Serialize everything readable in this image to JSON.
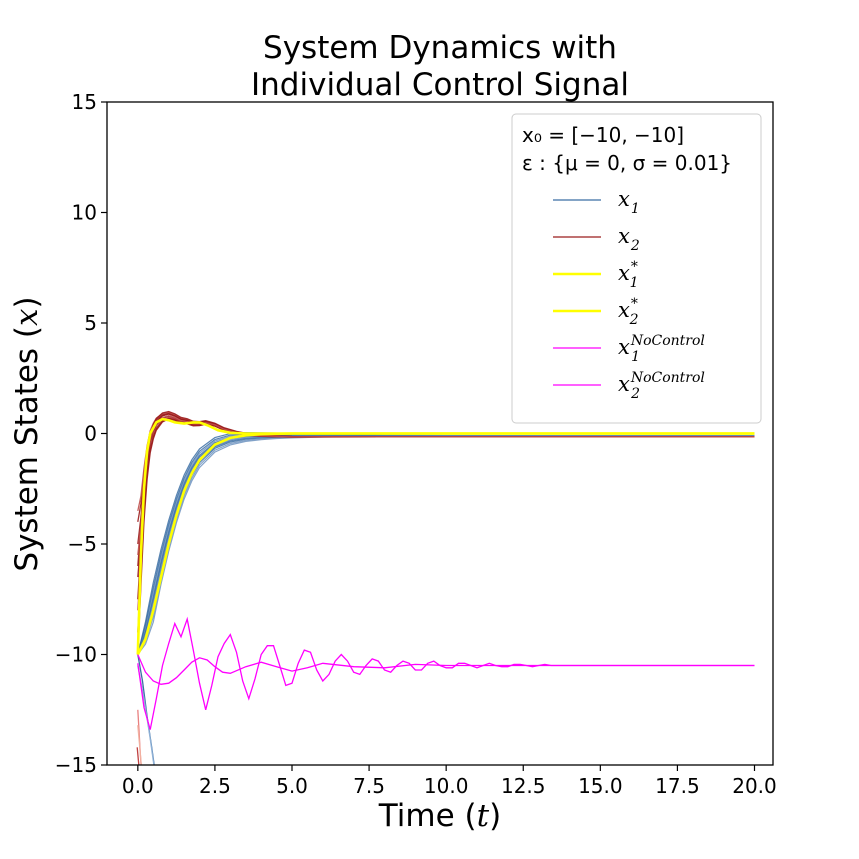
{
  "chart_data": {
    "type": "line",
    "title_lines": [
      "System Dynamics with",
      "Individual Control Signal"
    ],
    "xlabel_text": "Time (",
    "xlabel_var": "t",
    "xlabel_end": ")",
    "ylabel_text": "System States (",
    "ylabel_var": "x",
    "ylabel_end": ")",
    "xlim": [
      -1.0,
      20.6
    ],
    "ylim": [
      -15,
      15
    ],
    "xticks": [
      0,
      2.5,
      5,
      7.5,
      10,
      12.5,
      15,
      17.5,
      20
    ],
    "xtick_labels": [
      "0.0",
      "2.5",
      "5.0",
      "7.5",
      "10.0",
      "12.5",
      "15.0",
      "17.5",
      "20.0"
    ],
    "yticks": [
      -15,
      -10,
      -5,
      0,
      5,
      10,
      15
    ],
    "ytick_labels": [
      "−15",
      "−10",
      "−5",
      "0",
      "5",
      "10",
      "15"
    ],
    "grid": false,
    "legend_position": "top-right",
    "legend_header": [
      "x₀ = [−10, −10]",
      "ε : {μ = 0, σ = 0.01}"
    ],
    "legend_entries": [
      {
        "symbol": "x",
        "sub": "1",
        "sup": "",
        "color": "#3b6ea5"
      },
      {
        "symbol": "x",
        "sub": "2",
        "sup": "",
        "color": "#9b1c1c"
      },
      {
        "symbol": "x",
        "sub": "1",
        "sup": "*",
        "color": "#ffff00"
      },
      {
        "symbol": "x",
        "sub": "2",
        "sup": "*",
        "color": "#ffff00"
      },
      {
        "symbol": "x",
        "sub": "1",
        "sup": "NoControl",
        "color": "#ff00ff"
      },
      {
        "symbol": "x",
        "sub": "2",
        "sup": "NoControl",
        "color": "#ff00ff"
      }
    ],
    "series": [
      {
        "key": "x1_mean",
        "color": "#3b6ea5",
        "x": [
          0,
          0.25,
          0.5,
          0.75,
          1.0,
          1.25,
          1.5,
          1.75,
          2.0,
          2.5,
          3.0,
          3.5,
          4.0,
          4.5,
          5.0,
          6,
          8,
          10,
          12,
          14,
          16,
          18,
          20
        ],
        "y": [
          -10,
          -9.0,
          -7.6,
          -6.0,
          -4.6,
          -3.4,
          -2.4,
          -1.65,
          -1.1,
          -0.5,
          -0.25,
          -0.15,
          -0.12,
          -0.1,
          -0.1,
          -0.1,
          -0.1,
          -0.1,
          -0.1,
          -0.1,
          -0.1,
          -0.1,
          -0.1
        ]
      },
      {
        "key": "x2_mean",
        "color": "#9b1c1c",
        "x": [
          0,
          0.1,
          0.2,
          0.3,
          0.4,
          0.5,
          0.6,
          0.8,
          1.0,
          1.2,
          1.4,
          1.6,
          1.8,
          2.0,
          2.2,
          2.5,
          2.8,
          3.2,
          3.6,
          4.0,
          5,
          6,
          8,
          10,
          12,
          14,
          16,
          18,
          20
        ],
        "y": [
          -5,
          -2.5,
          -1.0,
          -0.2,
          0.3,
          0.5,
          0.65,
          0.8,
          0.85,
          0.75,
          0.6,
          0.55,
          0.45,
          0.45,
          0.5,
          0.4,
          0.2,
          0.05,
          -0.05,
          -0.1,
          -0.15,
          -0.15,
          -0.15,
          -0.15,
          -0.15,
          -0.15,
          -0.15,
          -0.15,
          -0.15
        ]
      },
      {
        "key": "x1_opt",
        "color": "#ffff00",
        "x": [
          0,
          0.25,
          0.5,
          0.75,
          1.0,
          1.25,
          1.5,
          1.75,
          2.0,
          2.5,
          3.0,
          3.5,
          4.0,
          5,
          6,
          8,
          10,
          12,
          14,
          16,
          18,
          20
        ],
        "y": [
          -10,
          -9.3,
          -8.0,
          -6.5,
          -5.0,
          -3.7,
          -2.6,
          -1.8,
          -1.2,
          -0.5,
          -0.2,
          -0.08,
          -0.03,
          0,
          0,
          0,
          0,
          0,
          0,
          0,
          0,
          0
        ]
      },
      {
        "key": "x2_opt",
        "color": "#ffff00",
        "x": [
          0,
          0.1,
          0.2,
          0.3,
          0.4,
          0.6,
          0.8,
          1.0,
          1.2,
          1.5,
          1.8,
          2.0,
          2.3,
          2.6,
          3.0,
          3.5,
          4.0,
          5,
          6,
          8,
          10,
          12,
          14,
          16,
          18,
          20
        ],
        "y": [
          -10,
          -5.5,
          -2.5,
          -0.8,
          0.0,
          0.5,
          0.65,
          0.6,
          0.5,
          0.45,
          0.5,
          0.5,
          0.35,
          0.15,
          0.03,
          0,
          0,
          0,
          0,
          0,
          0,
          0,
          0,
          0,
          0,
          0
        ]
      },
      {
        "key": "x1_noctrl",
        "color": "#ff00ff",
        "x": [
          0,
          0.25,
          0.5,
          0.75,
          1.0,
          1.25,
          1.5,
          1.75,
          2.0,
          2.25,
          2.5,
          2.75,
          3.0,
          3.5,
          4.0,
          4.5,
          5.0,
          5.5,
          6.0,
          7,
          8,
          9,
          10,
          12,
          14,
          16,
          18,
          20
        ],
        "y": [
          -10,
          -10.8,
          -11.2,
          -11.35,
          -11.3,
          -11.05,
          -10.7,
          -10.35,
          -10.15,
          -10.25,
          -10.55,
          -10.8,
          -10.85,
          -10.55,
          -10.35,
          -10.55,
          -10.75,
          -10.6,
          -10.4,
          -10.55,
          -10.6,
          -10.45,
          -10.5,
          -10.5,
          -10.5,
          -10.5,
          -10.5,
          -10.5
        ]
      },
      {
        "key": "x2_noctrl",
        "color": "#ff00ff",
        "x": [
          0,
          0.2,
          0.4,
          0.6,
          0.8,
          1.0,
          1.2,
          1.4,
          1.6,
          1.8,
          2.0,
          2.2,
          2.4,
          2.6,
          2.8,
          3.0,
          3.2,
          3.4,
          3.6,
          3.8,
          4.0,
          4.2,
          4.4,
          4.6,
          4.8,
          5.0,
          5.2,
          5.4,
          5.6,
          5.8,
          6.0,
          6.2,
          6.4,
          6.6,
          6.8,
          7.0,
          7.2,
          7.4,
          7.6,
          7.8,
          8.0,
          8.2,
          8.4,
          8.6,
          8.8,
          9.0,
          9.2,
          9.4,
          9.6,
          9.8,
          10.0,
          10.2,
          10.4,
          10.6,
          10.8,
          11.0,
          11.2,
          11.4,
          11.6,
          11.8,
          12.0,
          12.2,
          12.4,
          12.6,
          12.8,
          13.0,
          13.2,
          13.4,
          13.6,
          13.8,
          14.0,
          14.2,
          14.4,
          14.6,
          14.8,
          15.0,
          15.2,
          15.4,
          15.6,
          15.8,
          16.0,
          16.2,
          16.4,
          16.6,
          16.8,
          17.0,
          17.2,
          17.4,
          17.6,
          17.8,
          18.0,
          18.2,
          18.4,
          18.6,
          18.8,
          19.0,
          19.2,
          19.4,
          19.6,
          19.8,
          20.0
        ],
        "y": [
          -10.4,
          -12.4,
          -13.4,
          -12.0,
          -10.5,
          -9.5,
          -8.6,
          -9.2,
          -8.4,
          -9.8,
          -11.3,
          -12.5,
          -11.4,
          -10.1,
          -9.5,
          -9.1,
          -9.9,
          -11.2,
          -12.0,
          -11.1,
          -10.0,
          -9.6,
          -9.6,
          -10.5,
          -11.4,
          -11.3,
          -10.4,
          -9.8,
          -9.9,
          -10.7,
          -11.2,
          -10.9,
          -10.3,
          -10.0,
          -10.3,
          -10.8,
          -10.9,
          -10.5,
          -10.2,
          -10.3,
          -10.7,
          -10.8,
          -10.5,
          -10.3,
          -10.4,
          -10.7,
          -10.7,
          -10.4,
          -10.3,
          -10.5,
          -10.6,
          -10.6,
          -10.4,
          -10.4,
          -10.5,
          -10.6,
          -10.5,
          -10.4,
          -10.5,
          -10.55,
          -10.55,
          -10.45,
          -10.45,
          -10.5,
          -10.55,
          -10.5,
          -10.45,
          -10.5,
          -10.5,
          -10.5,
          -10.5,
          -10.5,
          -10.5,
          -10.5,
          -10.5,
          -10.5,
          -10.5,
          -10.5,
          -10.5,
          -10.5,
          -10.5,
          -10.5,
          -10.5,
          -10.5,
          -10.5,
          -10.5,
          -10.5,
          -10.5,
          -10.5,
          -10.5,
          -10.5,
          -10.5,
          -10.5,
          -10.5,
          -10.5,
          -10.5,
          -10.5,
          -10.5,
          -10.5,
          -10.5,
          -10.5
        ]
      }
    ],
    "x1_ensemble_offsets": [
      -0.9,
      -0.6,
      -0.35,
      -0.15,
      0.1,
      0.3,
      0.55,
      0.8,
      1.1,
      -1.2
    ],
    "x2_ensemble_offsets": [
      -0.3,
      -0.2,
      -0.1,
      0.08,
      0.15,
      0.22,
      0.3,
      -0.25,
      0.12,
      -0.05
    ],
    "x2_ensemble_starts": [
      -10,
      -8,
      -6.5,
      -5,
      -4,
      -3.5,
      -6,
      -9,
      -7.5,
      -5.5
    ],
    "offscale_traces": [
      {
        "color": "#3b6ea5",
        "x": [
          0,
          0.15,
          0.3,
          0.45,
          0.55
        ],
        "y": [
          -10,
          -11.2,
          -12.8,
          -14.2,
          -15.2
        ]
      },
      {
        "color": "#8fb1d6",
        "x": [
          0,
          0.2,
          0.4,
          0.55
        ],
        "y": [
          -10.5,
          -12.0,
          -13.8,
          -15.3
        ]
      },
      {
        "color": "#e98080",
        "x": [
          0,
          0.04,
          0.08,
          0.12
        ],
        "y": [
          -12.5,
          -13.5,
          -14.5,
          -15.3
        ]
      },
      {
        "color": "#f2b0a0",
        "x": [
          0,
          0.05,
          0.1,
          0.14
        ],
        "y": [
          -13.2,
          -14.0,
          -14.8,
          -15.4
        ]
      },
      {
        "color": "#c04040",
        "x": [
          -0.02,
          0.02,
          0.06
        ],
        "y": [
          -14.2,
          -14.8,
          -15.4
        ]
      }
    ]
  }
}
